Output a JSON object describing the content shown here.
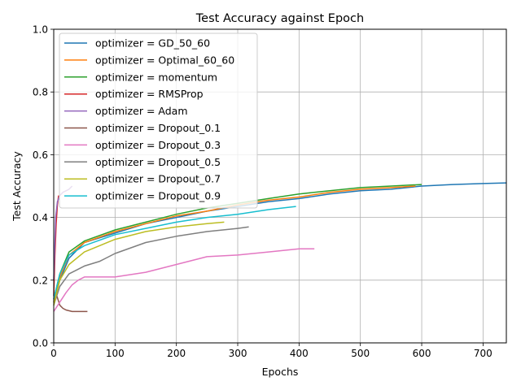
{
  "chart_data": {
    "type": "line",
    "title": "Test Accuracy against Epoch",
    "xlabel": "Epochs",
    "ylabel": "Test Accuracy",
    "xlim": [
      0,
      738
    ],
    "ylim": [
      0,
      1.0
    ],
    "xticks": [
      0,
      100,
      200,
      300,
      400,
      500,
      600,
      700
    ],
    "yticks": [
      0.0,
      0.2,
      0.4,
      0.6,
      0.8,
      1.0
    ],
    "xtick_labels": [
      "0",
      "100",
      "200",
      "300",
      "400",
      "500",
      "600",
      "700"
    ],
    "ytick_labels": [
      "0.0",
      "0.2",
      "0.4",
      "0.6",
      "0.8",
      "1.0"
    ],
    "grid": true,
    "legend_position": "top-left",
    "series": [
      {
        "name": "optimizer = GD_50_60",
        "color": "#1f77b4",
        "x": [
          0,
          10,
          25,
          50,
          100,
          150,
          200,
          250,
          300,
          350,
          400,
          450,
          500,
          550,
          600,
          650,
          700,
          738
        ],
        "y": [
          0.13,
          0.2,
          0.27,
          0.32,
          0.35,
          0.38,
          0.4,
          0.42,
          0.435,
          0.45,
          0.46,
          0.475,
          0.485,
          0.49,
          0.5,
          0.505,
          0.508,
          0.51
        ]
      },
      {
        "name": "optimizer = Optimal_60_60",
        "color": "#ff7f0e",
        "x": [
          0,
          10,
          25,
          50,
          100,
          150,
          200,
          250,
          300,
          350,
          400,
          450,
          500,
          550,
          590
        ],
        "y": [
          0.13,
          0.21,
          0.28,
          0.32,
          0.355,
          0.38,
          0.405,
          0.42,
          0.44,
          0.455,
          0.465,
          0.48,
          0.49,
          0.495,
          0.5
        ]
      },
      {
        "name": "optimizer = momentum",
        "color": "#2ca02c",
        "x": [
          0,
          10,
          25,
          50,
          100,
          150,
          200,
          250,
          300,
          350,
          400,
          450,
          500,
          550,
          600
        ],
        "y": [
          0.14,
          0.22,
          0.29,
          0.325,
          0.36,
          0.385,
          0.41,
          0.43,
          0.445,
          0.46,
          0.475,
          0.485,
          0.495,
          0.5,
          0.505
        ]
      },
      {
        "name": "optimizer = RMSProp",
        "color": "#d62728",
        "x": [
          0,
          2,
          4,
          6,
          8
        ],
        "y": [
          0.15,
          0.28,
          0.38,
          0.44,
          0.47
        ]
      },
      {
        "name": "optimizer = Adam",
        "color": "#9467bd",
        "x": [
          0,
          3,
          6,
          10,
          15,
          20,
          25,
          30
        ],
        "y": [
          0.2,
          0.4,
          0.45,
          0.47,
          0.48,
          0.485,
          0.49,
          0.5
        ]
      },
      {
        "name": "optimizer = Dropout_0.1",
        "color": "#8c564b",
        "x": [
          0,
          5,
          10,
          15,
          20,
          30,
          40,
          55
        ],
        "y": [
          0.13,
          0.15,
          0.12,
          0.11,
          0.105,
          0.1,
          0.1,
          0.1
        ]
      },
      {
        "name": "optimizer = Dropout_0.3",
        "color": "#e377c2",
        "x": [
          0,
          10,
          20,
          30,
          40,
          50,
          75,
          100,
          150,
          200,
          250,
          300,
          350,
          400,
          425
        ],
        "y": [
          0.1,
          0.13,
          0.16,
          0.185,
          0.2,
          0.21,
          0.21,
          0.21,
          0.225,
          0.25,
          0.275,
          0.28,
          0.29,
          0.3,
          0.3
        ]
      },
      {
        "name": "optimizer = Dropout_0.5",
        "color": "#7f7f7f",
        "x": [
          0,
          10,
          25,
          50,
          75,
          100,
          150,
          200,
          250,
          300,
          318
        ],
        "y": [
          0.12,
          0.18,
          0.22,
          0.245,
          0.26,
          0.285,
          0.32,
          0.34,
          0.355,
          0.365,
          0.37
        ]
      },
      {
        "name": "optimizer = Dropout_0.7",
        "color": "#bcbd22",
        "x": [
          0,
          10,
          25,
          50,
          100,
          150,
          200,
          250,
          278
        ],
        "y": [
          0.12,
          0.2,
          0.25,
          0.29,
          0.33,
          0.355,
          0.37,
          0.38,
          0.385
        ]
      },
      {
        "name": "optimizer = Dropout_0.9",
        "color": "#17becf",
        "x": [
          0,
          10,
          25,
          50,
          100,
          150,
          200,
          250,
          300,
          350,
          395
        ],
        "y": [
          0.14,
          0.22,
          0.28,
          0.31,
          0.345,
          0.365,
          0.385,
          0.4,
          0.41,
          0.425,
          0.435
        ]
      }
    ]
  }
}
